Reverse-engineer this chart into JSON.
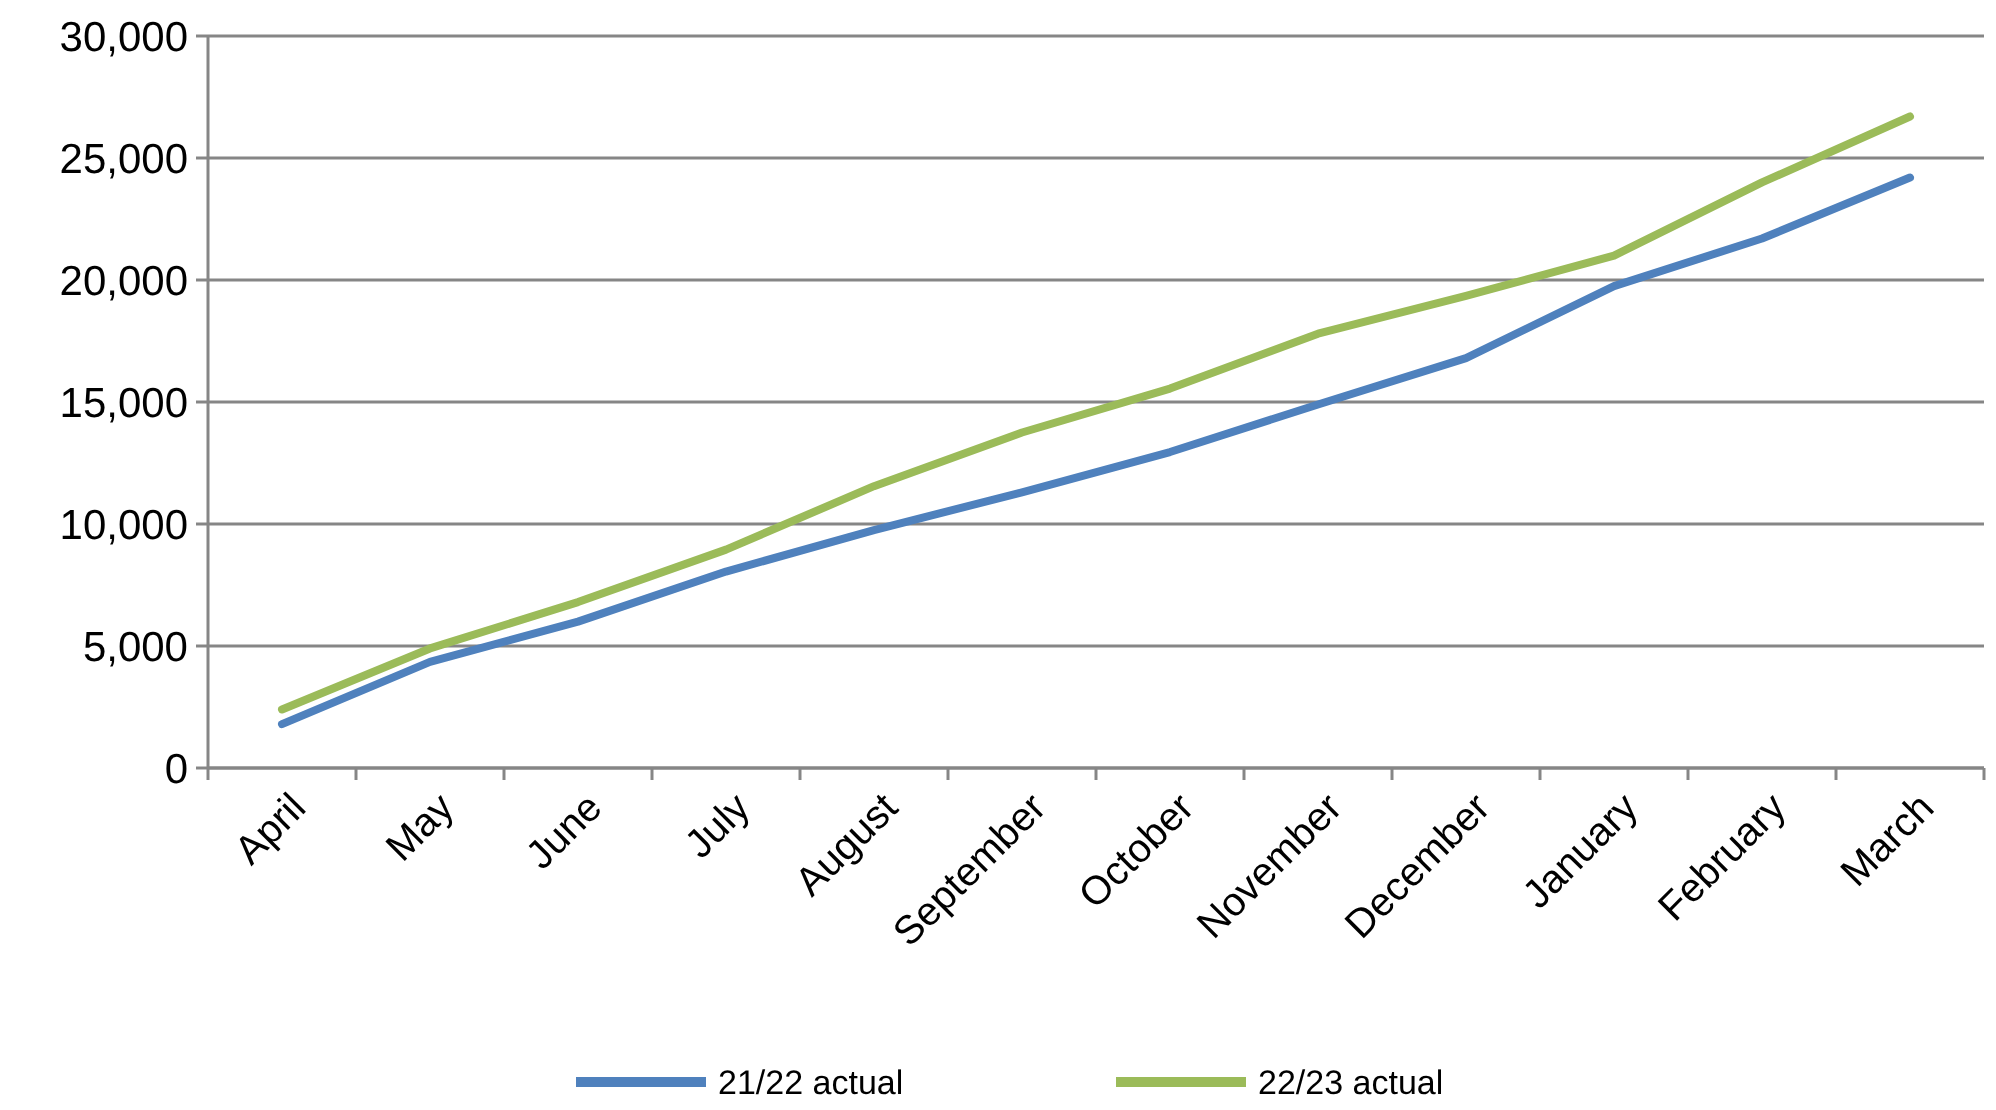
{
  "chart_data": {
    "type": "line",
    "categories": [
      "April",
      "May",
      "June",
      "July",
      "August",
      "September",
      "October",
      "November",
      "December",
      "January",
      "February",
      "March"
    ],
    "series": [
      {
        "name": "21/22 actual",
        "color": "#4f81bd",
        "values": [
          1800,
          4350,
          6000,
          8050,
          9750,
          11300,
          12950,
          14900,
          16800,
          19750,
          21700,
          24200
        ]
      },
      {
        "name": "22/23 actual",
        "color": "#9bbb59",
        "values": [
          2400,
          4900,
          6800,
          8950,
          11550,
          13750,
          15550,
          17800,
          19350,
          21000,
          24000,
          26700
        ]
      }
    ],
    "ylim": [
      0,
      30000
    ],
    "yticks": [
      {
        "value": 0,
        "label": "0"
      },
      {
        "value": 5000,
        "label": "5,000"
      },
      {
        "value": 10000,
        "label": "10,000"
      },
      {
        "value": 15000,
        "label": "15,000"
      },
      {
        "value": 20000,
        "label": "20,000"
      },
      {
        "value": 25000,
        "label": "25,000"
      },
      {
        "value": 30000,
        "label": "30,000"
      }
    ],
    "grid": "y",
    "legend": "bottom",
    "marker": "none",
    "line_style": "solid"
  }
}
